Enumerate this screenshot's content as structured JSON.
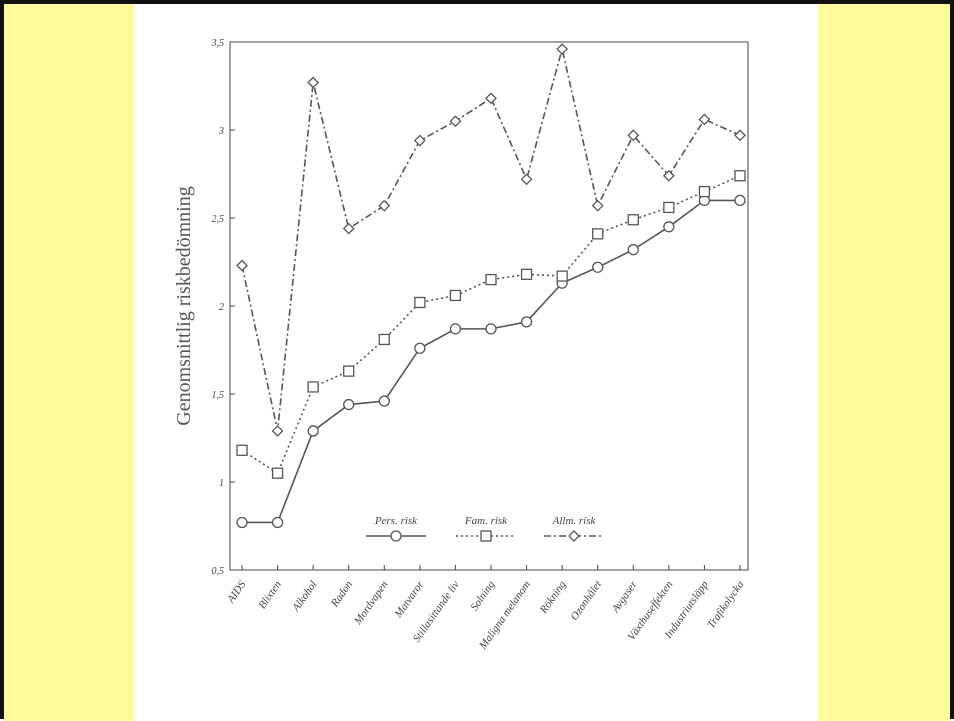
{
  "chart_data": {
    "type": "line",
    "ylabel": "Genomsnittlig riskbedömning",
    "xlabel": "",
    "title": "",
    "ylim": [
      0.5,
      3.5
    ],
    "yticks": [
      "0,5",
      "1",
      "1,5",
      "2",
      "2,5",
      "3",
      "3,5"
    ],
    "grid": false,
    "legend": "bottom-center",
    "categories": [
      "AIDS",
      "Blixten",
      "Alkohol",
      "Radon",
      "Mordvapen",
      "Matvaror",
      "Stillasittande liv",
      "Solning",
      "Maligna melanom",
      "Rökning",
      "Ozonhålet",
      "Avgaser",
      "Växthuseffekten",
      "Industriutsläpp",
      "Trafikolycka"
    ],
    "series": [
      {
        "name": "Pers. risk",
        "marker": "circle",
        "dash": "solid",
        "values": [
          0.77,
          0.77,
          1.29,
          1.44,
          1.46,
          1.76,
          1.87,
          1.87,
          1.91,
          2.13,
          2.22,
          2.32,
          2.45,
          2.6,
          2.6
        ]
      },
      {
        "name": "Fam. risk",
        "marker": "square",
        "dash": "dotted",
        "values": [
          1.18,
          1.05,
          1.54,
          1.63,
          1.81,
          2.02,
          2.06,
          2.15,
          2.18,
          2.17,
          2.41,
          2.49,
          2.56,
          2.65,
          2.74
        ]
      },
      {
        "name": "Allm. risk",
        "marker": "diamond",
        "dash": "dashdot",
        "values": [
          2.23,
          1.29,
          3.27,
          2.44,
          2.57,
          2.94,
          3.05,
          3.18,
          2.72,
          3.46,
          2.57,
          2.97,
          2.74,
          3.06,
          2.97
        ]
      }
    ],
    "colors": {
      "line": "#555555",
      "axis": "#444444",
      "marker_fill": "#ffffff"
    }
  },
  "page": {
    "band_color": "#fffd9b"
  }
}
